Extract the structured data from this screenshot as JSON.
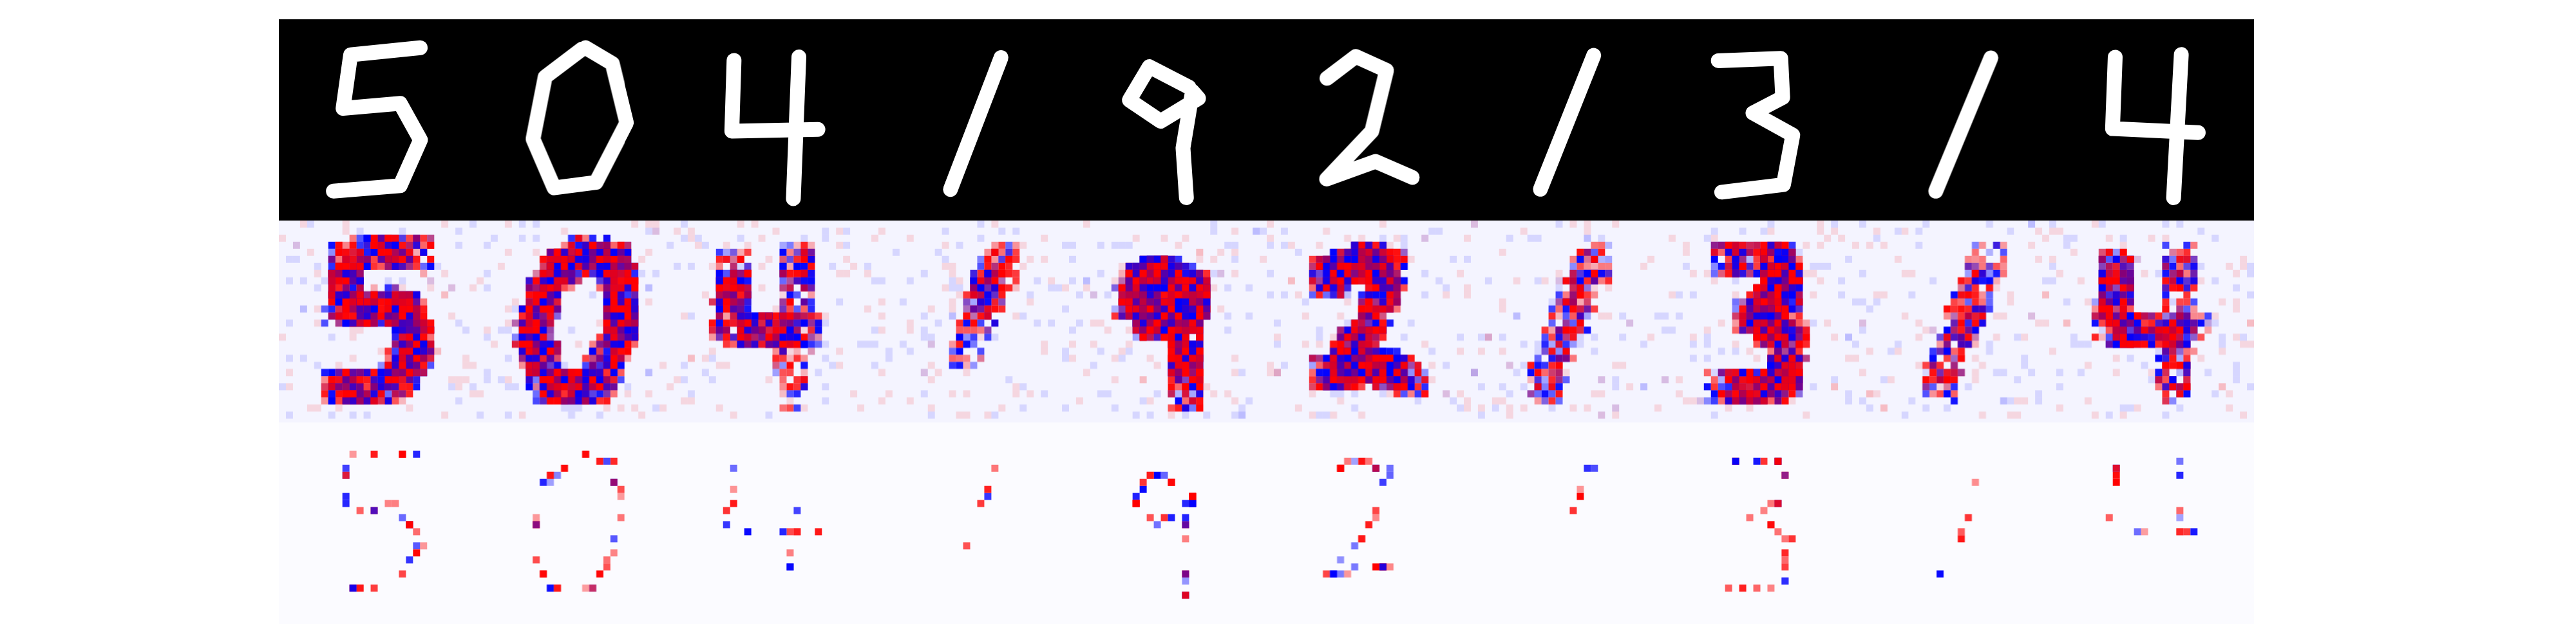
{
  "figure": {
    "rows": [
      {
        "name": "input-digits",
        "style": "mnist"
      },
      {
        "name": "relevance-map-dense",
        "style": "dense-relevance"
      },
      {
        "name": "relevance-map-sparse",
        "style": "sparse-relevance"
      }
    ],
    "digits": [
      "5",
      "0",
      "4",
      "1",
      "9",
      "2",
      "1",
      "3",
      "1",
      "4"
    ],
    "colors": {
      "background_input": "#000000",
      "stroke_input": "#ffffff",
      "positive": "#ff0000",
      "negative": "#0000ff",
      "neutral": "#ffffff"
    }
  }
}
